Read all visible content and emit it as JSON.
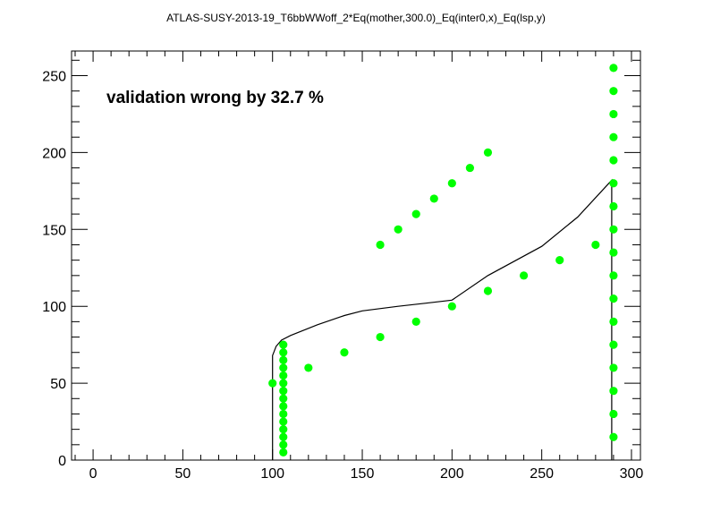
{
  "chart_data": {
    "type": "scatter",
    "title": "ATLAS-SUSY-2013-19_T6bbWWoff_2*Eq(mother,300.0)_Eq(inter0,x)_Eq(lsp,y)",
    "annotation": "validation wrong by 32.7 %",
    "xlabel": "",
    "ylabel": "",
    "xlim": [
      -12,
      305
    ],
    "ylim": [
      0,
      266
    ],
    "x_ticks": [
      0,
      50,
      100,
      150,
      200,
      250,
      300
    ],
    "y_ticks": [
      0,
      50,
      100,
      150,
      200,
      250
    ],
    "grid": false,
    "legend": "none",
    "colors": {
      "points": "#00ff00",
      "line": "#000000",
      "frame": "#000000",
      "background": "#ffffff"
    },
    "series": [
      {
        "type": "scatter",
        "points": [
          [
            100,
            50
          ],
          [
            106,
            5
          ],
          [
            106,
            10
          ],
          [
            106,
            15
          ],
          [
            106,
            20
          ],
          [
            106,
            25
          ],
          [
            106,
            30
          ],
          [
            106,
            35
          ],
          [
            106,
            40
          ],
          [
            106,
            45
          ],
          [
            106,
            50
          ],
          [
            106,
            55
          ],
          [
            106,
            60
          ],
          [
            106,
            65
          ],
          [
            106,
            70
          ],
          [
            106,
            75
          ],
          [
            120,
            60
          ],
          [
            140,
            70
          ],
          [
            160,
            80
          ],
          [
            180,
            90
          ],
          [
            200,
            100
          ],
          [
            220,
            110
          ],
          [
            240,
            120
          ],
          [
            260,
            130
          ],
          [
            280,
            140
          ],
          [
            160,
            140
          ],
          [
            170,
            150
          ],
          [
            180,
            160
          ],
          [
            190,
            170
          ],
          [
            200,
            180
          ],
          [
            210,
            190
          ],
          [
            220,
            200
          ],
          [
            290,
            15
          ],
          [
            290,
            30
          ],
          [
            290,
            45
          ],
          [
            290,
            60
          ],
          [
            290,
            75
          ],
          [
            290,
            90
          ],
          [
            290,
            105
          ],
          [
            290,
            120
          ],
          [
            290,
            135
          ],
          [
            290,
            150
          ],
          [
            290,
            165
          ],
          [
            290,
            180
          ],
          [
            290,
            195
          ],
          [
            290,
            210
          ],
          [
            290,
            225
          ],
          [
            290,
            240
          ],
          [
            290,
            255
          ]
        ]
      },
      {
        "type": "line",
        "points": [
          [
            100,
            0
          ],
          [
            100,
            68
          ],
          [
            102,
            74
          ],
          [
            105,
            78
          ],
          [
            110,
            81
          ],
          [
            125,
            88
          ],
          [
            140,
            94
          ],
          [
            150,
            97
          ],
          [
            170,
            100
          ],
          [
            185,
            102
          ],
          [
            200,
            104
          ],
          [
            220,
            120
          ],
          [
            250,
            139
          ],
          [
            270,
            158
          ],
          [
            289,
            182
          ],
          [
            289,
            0
          ]
        ]
      }
    ]
  }
}
